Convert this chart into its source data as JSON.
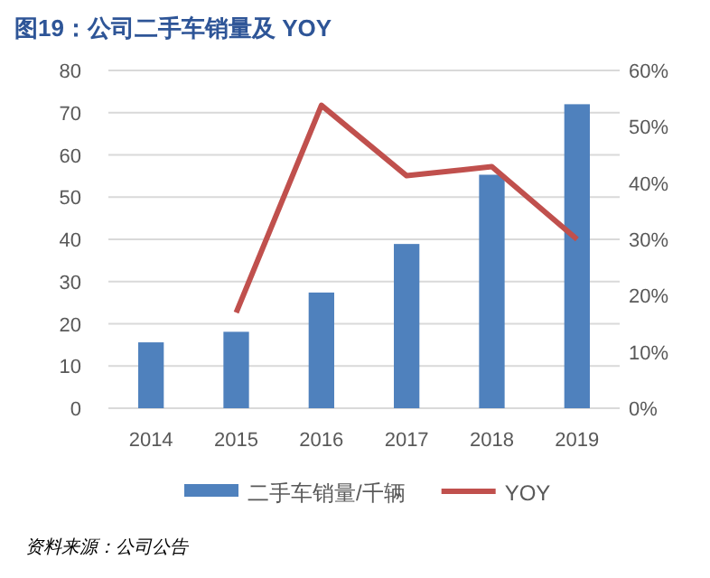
{
  "chart_data": {
    "type": "bar",
    "title": "图19：公司二手车销量及 YOY",
    "categories": [
      "2014",
      "2015",
      "2016",
      "2017",
      "2018",
      "2019"
    ],
    "series": [
      {
        "name": "二手车销量/千辆",
        "color": "#4f81bd",
        "values": [
          15.6,
          18.1,
          27.4,
          38.9,
          55.3,
          72.0
        ]
      },
      {
        "name": "YOY",
        "type": "line",
        "axis": "y2",
        "color": "#c0504d",
        "values": [
          null,
          17.0,
          53.8,
          41.3,
          42.9,
          30.0
        ]
      }
    ],
    "ylim": [
      0,
      80
    ],
    "yticks": [
      0,
      10,
      20,
      30,
      40,
      50,
      60,
      70,
      80
    ],
    "y2lim": [
      0,
      60
    ],
    "y2ticks": [
      {
        "value": 0,
        "label": "0%"
      },
      {
        "value": 10,
        "label": "10%"
      },
      {
        "value": 20,
        "label": "20%"
      },
      {
        "value": 30,
        "label": "30%"
      },
      {
        "value": 40,
        "label": "40%"
      },
      {
        "value": 50,
        "label": "50%"
      },
      {
        "value": 60,
        "label": "60%"
      }
    ],
    "grid": "y",
    "legend": "bottom",
    "marker": "none",
    "annotations": [
      "资料来源：公司公告"
    ]
  }
}
